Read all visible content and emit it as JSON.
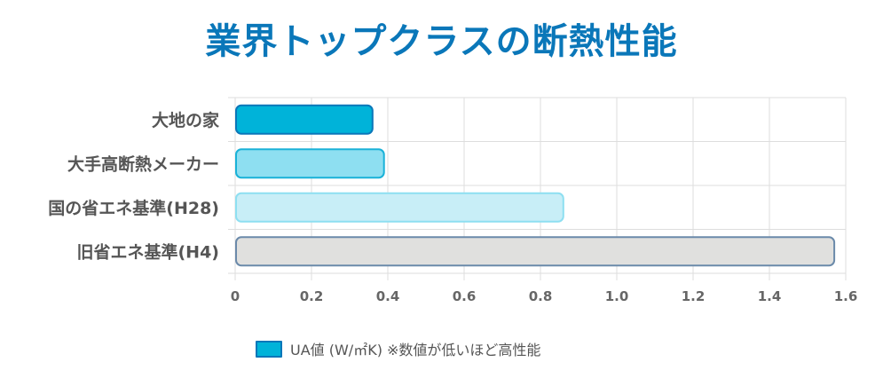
{
  "chart_data": {
    "type": "bar",
    "orientation": "horizontal",
    "title": "業界トップクラスの断熱性能",
    "categories": [
      "大地の家",
      "大手高断熱メーカー",
      "国の省エネ基準(H28)",
      "旧省エネ基準(H4)"
    ],
    "series": [
      {
        "name": "UA値 (W/㎡K) ※数値が低いほど高性能",
        "values": [
          0.36,
          0.39,
          0.86,
          1.57
        ],
        "fill_colors": [
          "#00b3d9",
          "#8edff1",
          "#c8eef7",
          "#e0e0de"
        ],
        "stroke_colors": [
          "#0a77b9",
          "#1ab2d8",
          "#8edff1",
          "#6b8aaa"
        ]
      }
    ],
    "xlim": [
      0,
      1.6
    ],
    "x_ticks": [
      "0",
      "0.2",
      "0.4",
      "0.6",
      "0.8",
      "1.0",
      "1.2",
      "1.4",
      "1.6"
    ],
    "xlabel": "",
    "ylabel": "",
    "grid": true,
    "legend_position": "bottom"
  },
  "legend": {
    "label": "UA値 (W/㎡K) ※数値が低いほど高性能",
    "swatch_color": "#00b3d9",
    "swatch_border": "#0a77b9"
  },
  "colors": {
    "title": "#0a77b9",
    "grid": "#dddddd",
    "label": "#555555"
  }
}
